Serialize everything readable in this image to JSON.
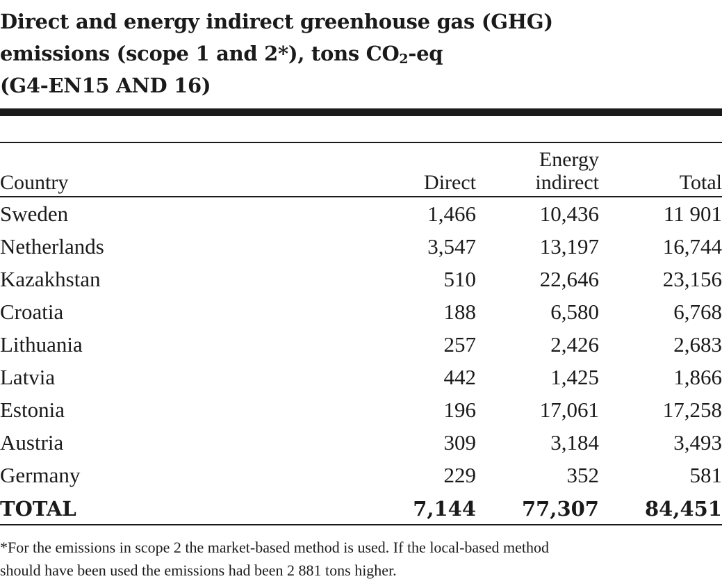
{
  "title": {
    "line1": "Direct and energy indirect greenhouse gas (GHG)",
    "line2_pre": "emissions (scope 1 and 2*), tons CO",
    "line2_sub": "2",
    "line2_post": "-eq",
    "line3": "(G4-EN15 AND 16)"
  },
  "table": {
    "headers": {
      "country": "Country",
      "direct": "Direct",
      "energy_line1": "Energy",
      "energy_line2": "indirect",
      "total": "Total"
    },
    "rows": [
      {
        "country": "Sweden",
        "direct": "1,466",
        "energy": "10,436",
        "total": "11 901"
      },
      {
        "country": "Netherlands",
        "direct": "3,547",
        "energy": "13,197",
        "total": "16,744"
      },
      {
        "country": "Kazakhstan",
        "direct": "510",
        "energy": "22,646",
        "total": "23,156"
      },
      {
        "country": "Croatia",
        "direct": "188",
        "energy": "6,580",
        "total": "6,768"
      },
      {
        "country": "Lithuania",
        "direct": "257",
        "energy": "2,426",
        "total": "2,683"
      },
      {
        "country": "Latvia",
        "direct": "442",
        "energy": "1,425",
        "total": "1,866"
      },
      {
        "country": "Estonia",
        "direct": "196",
        "energy": "17,061",
        "total": "17,258"
      },
      {
        "country": "Austria",
        "direct": "309",
        "energy": "3,184",
        "total": "3,493"
      },
      {
        "country": "Germany",
        "direct": "229",
        "energy": "352",
        "total": "581"
      }
    ],
    "total": {
      "country": "TOTAL",
      "direct": "7,144",
      "energy": "77,307",
      "total": "84,451"
    }
  },
  "footnote": {
    "line1": "*For the emissions in scope 2 the market-based method is used. If the local-based method",
    "line2": "should have been used the emissions had been 2 881 tons higher."
  }
}
